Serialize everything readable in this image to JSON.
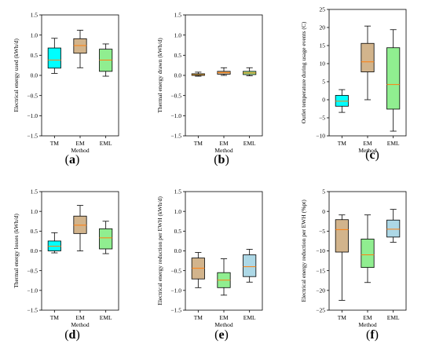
{
  "chart_data": [
    {
      "type": "box",
      "panel_label": "a",
      "ylabel": "Electrical energy used (kWh/d)",
      "xlabel": "Method",
      "categories": [
        "TM",
        "EM",
        "EML"
      ],
      "ylim": [
        -1.5,
        1.5
      ],
      "yticks": [
        -1.5,
        -1.0,
        -0.5,
        0.0,
        0.5,
        1.0,
        1.5
      ],
      "yticklabels": [
        "−1.5",
        "−1.0",
        "−0.5",
        "0.0",
        "0.5",
        "1.0",
        "1.5"
      ],
      "boxes": [
        {
          "min": 0.05,
          "q1": 0.18,
          "median": 0.38,
          "q3": 0.68,
          "max": 0.92,
          "color": "#00ffff"
        },
        {
          "min": 0.19,
          "q1": 0.55,
          "median": 0.74,
          "q3": 0.91,
          "max": 1.12,
          "color": "#d2b48c"
        },
        {
          "min": -0.02,
          "q1": 0.1,
          "median": 0.38,
          "q3": 0.65,
          "max": 0.78,
          "color": "#90ee90"
        }
      ]
    },
    {
      "type": "box",
      "panel_label": "b",
      "ylabel": "Thermal energy drawn (kWh/d)",
      "xlabel": "Method",
      "categories": [
        "TM",
        "EM",
        "EML"
      ],
      "ylim": [
        -1.5,
        1.5
      ],
      "yticks": [
        -1.5,
        -1.0,
        -0.5,
        0.0,
        0.5,
        1.0,
        1.5
      ],
      "yticklabels": [
        "−1.5",
        "−1.0",
        "−0.5",
        "0.0",
        "0.5",
        "1.0",
        "1.5"
      ],
      "boxes": [
        {
          "min": -0.02,
          "q1": 0.0,
          "median": 0.02,
          "q3": 0.04,
          "max": 0.08,
          "color": "#00ffff"
        },
        {
          "min": 0.0,
          "q1": 0.03,
          "median": 0.07,
          "q3": 0.1,
          "max": 0.19,
          "color": "#d2b48c"
        },
        {
          "min": -0.01,
          "q1": 0.02,
          "median": 0.06,
          "q3": 0.1,
          "max": 0.19,
          "color": "#90ee90"
        }
      ]
    },
    {
      "type": "box",
      "panel_label": "c",
      "ylabel": "Outlet temperature during usage events (C)",
      "xlabel": "Method",
      "categories": [
        "TM",
        "EM",
        "EML"
      ],
      "ylim": [
        -10,
        25
      ],
      "yticks": [
        -10,
        -5,
        0,
        5,
        10,
        15,
        20,
        25
      ],
      "yticklabels": [
        "−10",
        "−5",
        "0",
        "5",
        "10",
        "15",
        "20",
        "25"
      ],
      "boxes": [
        {
          "min": -3.5,
          "q1": -1.8,
          "median": -0.4,
          "q3": 1.2,
          "max": 2.8,
          "color": "#00ffff"
        },
        {
          "min": 0.0,
          "q1": 7.7,
          "median": 10.5,
          "q3": 15.6,
          "max": 20.4,
          "color": "#d2b48c"
        },
        {
          "min": -8.7,
          "q1": -2.6,
          "median": 4.2,
          "q3": 14.4,
          "max": 19.4,
          "color": "#90ee90"
        }
      ]
    },
    {
      "type": "box",
      "panel_label": "d",
      "ylabel": "Thermal energy losses (kWh/d)",
      "xlabel": "Method",
      "categories": [
        "TM",
        "EM",
        "EML"
      ],
      "ylim": [
        -1.5,
        1.5
      ],
      "yticks": [
        -1.5,
        -1.0,
        -0.5,
        0.0,
        0.5,
        1.0,
        1.5
      ],
      "yticklabels": [
        "−1.5",
        "−1.0",
        "−0.5",
        "0.0",
        "0.5",
        "1.0",
        "1.5"
      ],
      "boxes": [
        {
          "min": -0.05,
          "q1": 0.0,
          "median": 0.12,
          "q3": 0.25,
          "max": 0.46,
          "color": "#00ffff"
        },
        {
          "min": 0.0,
          "q1": 0.44,
          "median": 0.65,
          "q3": 0.88,
          "max": 1.15,
          "color": "#d2b48c"
        },
        {
          "min": -0.07,
          "q1": 0.05,
          "median": 0.33,
          "q3": 0.56,
          "max": 0.75,
          "color": "#90ee90"
        }
      ]
    },
    {
      "type": "box",
      "panel_label": "e",
      "ylabel": "Electrical energy reduction per EWH (kWh/d)",
      "xlabel": "Method",
      "categories": [
        "TM",
        "EM",
        "EML"
      ],
      "ylim": [
        -1.5,
        1.5
      ],
      "yticks": [
        -1.5,
        -1.0,
        -0.5,
        0.0,
        0.5,
        1.0,
        1.5
      ],
      "yticklabels": [
        "−1.5",
        "−1.0",
        "−0.5",
        "0.0",
        "0.5",
        "1.0",
        "1.5"
      ],
      "boxes": [
        {
          "min": -0.93,
          "q1": -0.71,
          "median": -0.44,
          "q3": -0.18,
          "max": -0.04,
          "color": "#d2b48c"
        },
        {
          "min": -1.12,
          "q1": -0.93,
          "median": -0.74,
          "q3": -0.55,
          "max": -0.2,
          "color": "#90ee90"
        },
        {
          "min": -0.79,
          "q1": -0.65,
          "median": -0.4,
          "q3": -0.1,
          "max": 0.04,
          "color": "#add8e6"
        }
      ]
    },
    {
      "type": "box",
      "panel_label": "f",
      "ylabel": "Electrical energy reduction per EWH (%pt)",
      "xlabel": "Method",
      "categories": [
        "TM",
        "EM",
        "EML"
      ],
      "ylim": [
        -25,
        5
      ],
      "yticks": [
        -25,
        -20,
        -15,
        -10,
        -5,
        0,
        5
      ],
      "yticklabels": [
        "−25",
        "−20",
        "−15",
        "−10",
        "−5",
        "0",
        "5"
      ],
      "boxes": [
        {
          "min": -22.5,
          "q1": -10.3,
          "median": -4.6,
          "q3": -2.1,
          "max": -0.9,
          "color": "#d2b48c"
        },
        {
          "min": -18.0,
          "q1": -14.2,
          "median": -11.0,
          "q3": -7.0,
          "max": -0.9,
          "color": "#90ee90"
        },
        {
          "min": -7.8,
          "q1": -6.5,
          "median": -4.5,
          "q3": -2.2,
          "max": 0.5,
          "color": "#add8e6"
        }
      ]
    }
  ]
}
